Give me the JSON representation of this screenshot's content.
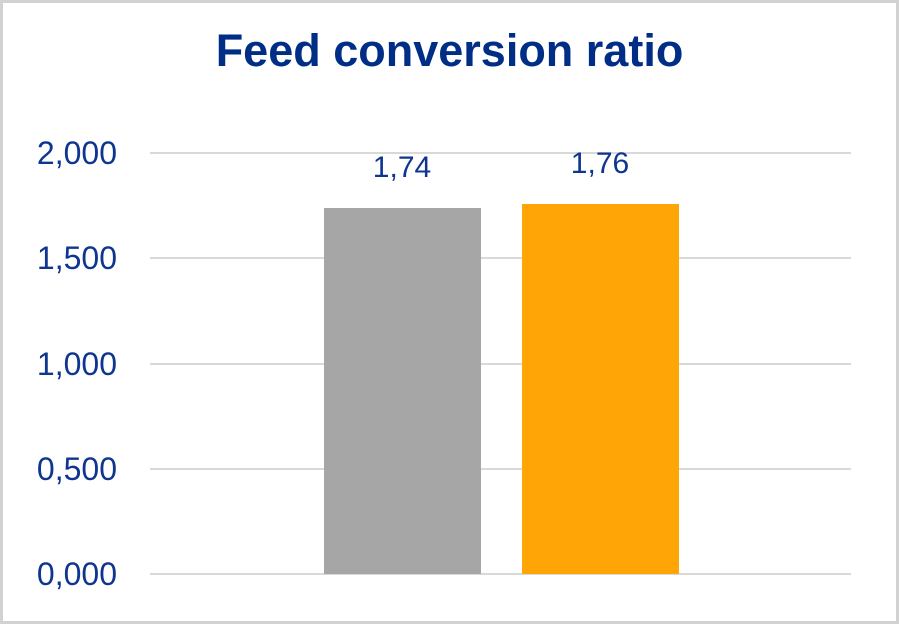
{
  "chart_data": {
    "type": "bar",
    "title": "Feed conversion ratio",
    "categories": [
      ""
    ],
    "series": [
      {
        "label": "1,74",
        "value": 1.74,
        "color": "#A6A6A6"
      },
      {
        "label": "1,76",
        "value": 1.76,
        "color": "#FFA505"
      }
    ],
    "y_axis": {
      "min": 0,
      "max": 2,
      "tick_values": [
        0,
        0.5,
        1,
        1.5,
        2
      ],
      "tick_labels": [
        "0,000",
        "0,500",
        "1,000",
        "1,500",
        "2,000"
      ]
    },
    "xlabel": "",
    "ylabel": "",
    "grid": "horizontal",
    "legend": "none",
    "colors": {
      "title_text": "#002E87",
      "axis_text": "#0E358F",
      "data_label_text": "#0E358F",
      "gridline": "#D9D9D9",
      "background": "#FFFFFF",
      "frame_border": "#D2D2D2"
    }
  }
}
